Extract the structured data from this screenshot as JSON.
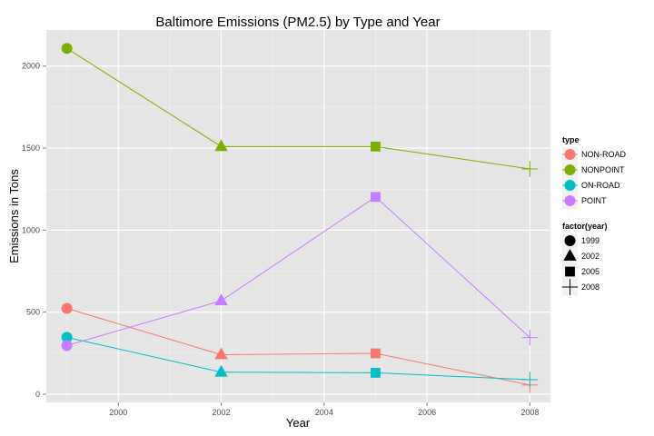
{
  "chart_data": {
    "type": "line",
    "title": "Baltimore Emissions (PM2.5) by Type and Year",
    "xlabel": "Year",
    "ylabel": "Emissions in Tons",
    "xlim": [
      1998.6,
      2008.4
    ],
    "ylim": [
      -50,
      2220
    ],
    "x_ticks": [
      2000,
      2002,
      2004,
      2006,
      2008
    ],
    "x_tick_labels": [
      "2000",
      "2002",
      "2004",
      "2006",
      "2008"
    ],
    "y_ticks": [
      0,
      500,
      1000,
      1500,
      2000
    ],
    "y_tick_labels": [
      "0",
      "500",
      "1000",
      "1500",
      "2000"
    ],
    "grid": true,
    "legend_position": "right",
    "x": [
      1999,
      2002,
      2005,
      2008
    ],
    "series": [
      {
        "name": "NON-ROAD",
        "color": "#f8766d",
        "values": [
          522.9,
          240.8,
          248.9,
          55.8
        ]
      },
      {
        "name": "NONPOINT",
        "color": "#7cae00",
        "values": [
          2107.6,
          1509.5,
          1509.5,
          1373.2
        ]
      },
      {
        "name": "ON-ROAD",
        "color": "#00bfc4",
        "values": [
          346.8,
          134.3,
          130.4,
          88.3
        ]
      },
      {
        "name": "POINT",
        "color": "#c77cff",
        "values": [
          296.8,
          569.3,
          1202.5,
          345.0
        ]
      }
    ],
    "legend_color": {
      "title": "type",
      "entries": [
        "NON-ROAD",
        "NONPOINT",
        "ON-ROAD",
        "POINT"
      ]
    },
    "legend_shape": {
      "title": "factor(year)",
      "entries": [
        {
          "label": "1999",
          "shape": "circle"
        },
        {
          "label": "2002",
          "shape": "triangle"
        },
        {
          "label": "2005",
          "shape": "square"
        },
        {
          "label": "2008",
          "shape": "plus"
        }
      ]
    }
  }
}
